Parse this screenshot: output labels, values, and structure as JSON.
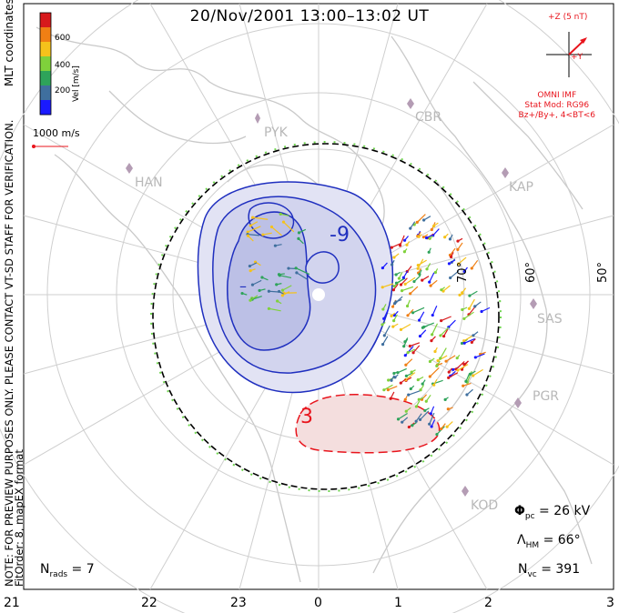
{
  "title": "20/Nov/2001  13:00–13:02  UT",
  "imf": {
    "label": "+Z (5 nT)",
    "y_label": "+Y",
    "source": "OMNI IMF",
    "stat_model": "Stat Mod: RG96",
    "condition": "Bz+/By+, 4<BT<6",
    "color": "#e8141c"
  },
  "colorbar": {
    "title": "Vel [m/s]",
    "ticks": [
      "600",
      "400",
      "200"
    ],
    "colors": [
      "#d7191c",
      "#f07f14",
      "#f5c21b",
      "#7fd13b",
      "#2ea35a",
      "#3f6f9e",
      "#1a1aff"
    ]
  },
  "mlt_label": "MLT coordinates",
  "vector_scale": "1000 m/s",
  "side_note": "NOTE: FOR PREVIEW PURPOSES ONLY. PLEASE CONTACT VT-SD STAFF FOR VERIFICATION.",
  "fit_info": "FitOrder: 8, mapEX format",
  "mlt_ticks": [
    "21",
    "22",
    "23",
    "0",
    "1",
    "2",
    "3"
  ],
  "lat_labels": [
    "70°",
    "60°",
    "50°"
  ],
  "stations": [
    "PYK",
    "CBR",
    "HAN",
    "KAP",
    "SAS",
    "PGR",
    "KOD"
  ],
  "contours": {
    "negative_label": "-9",
    "negative_inner_label": "–",
    "positive_label": "3",
    "negative_color": "#1f2fbf",
    "positive_color": "#e8141c"
  },
  "stats": {
    "phi_pc": "Φ",
    "phi_pc_sub": "pc",
    "phi_pc_value": " = 26 kV",
    "lambda_hm": "Λ",
    "lambda_hm_sub": "HM",
    "lambda_hm_value": " = 66°",
    "n_vc": "N",
    "n_vc_sub": "vc",
    "n_vc_value": " = 391",
    "n_rads": "N",
    "n_rads_sub": "rads",
    "n_rads_value": " = 7"
  }
}
